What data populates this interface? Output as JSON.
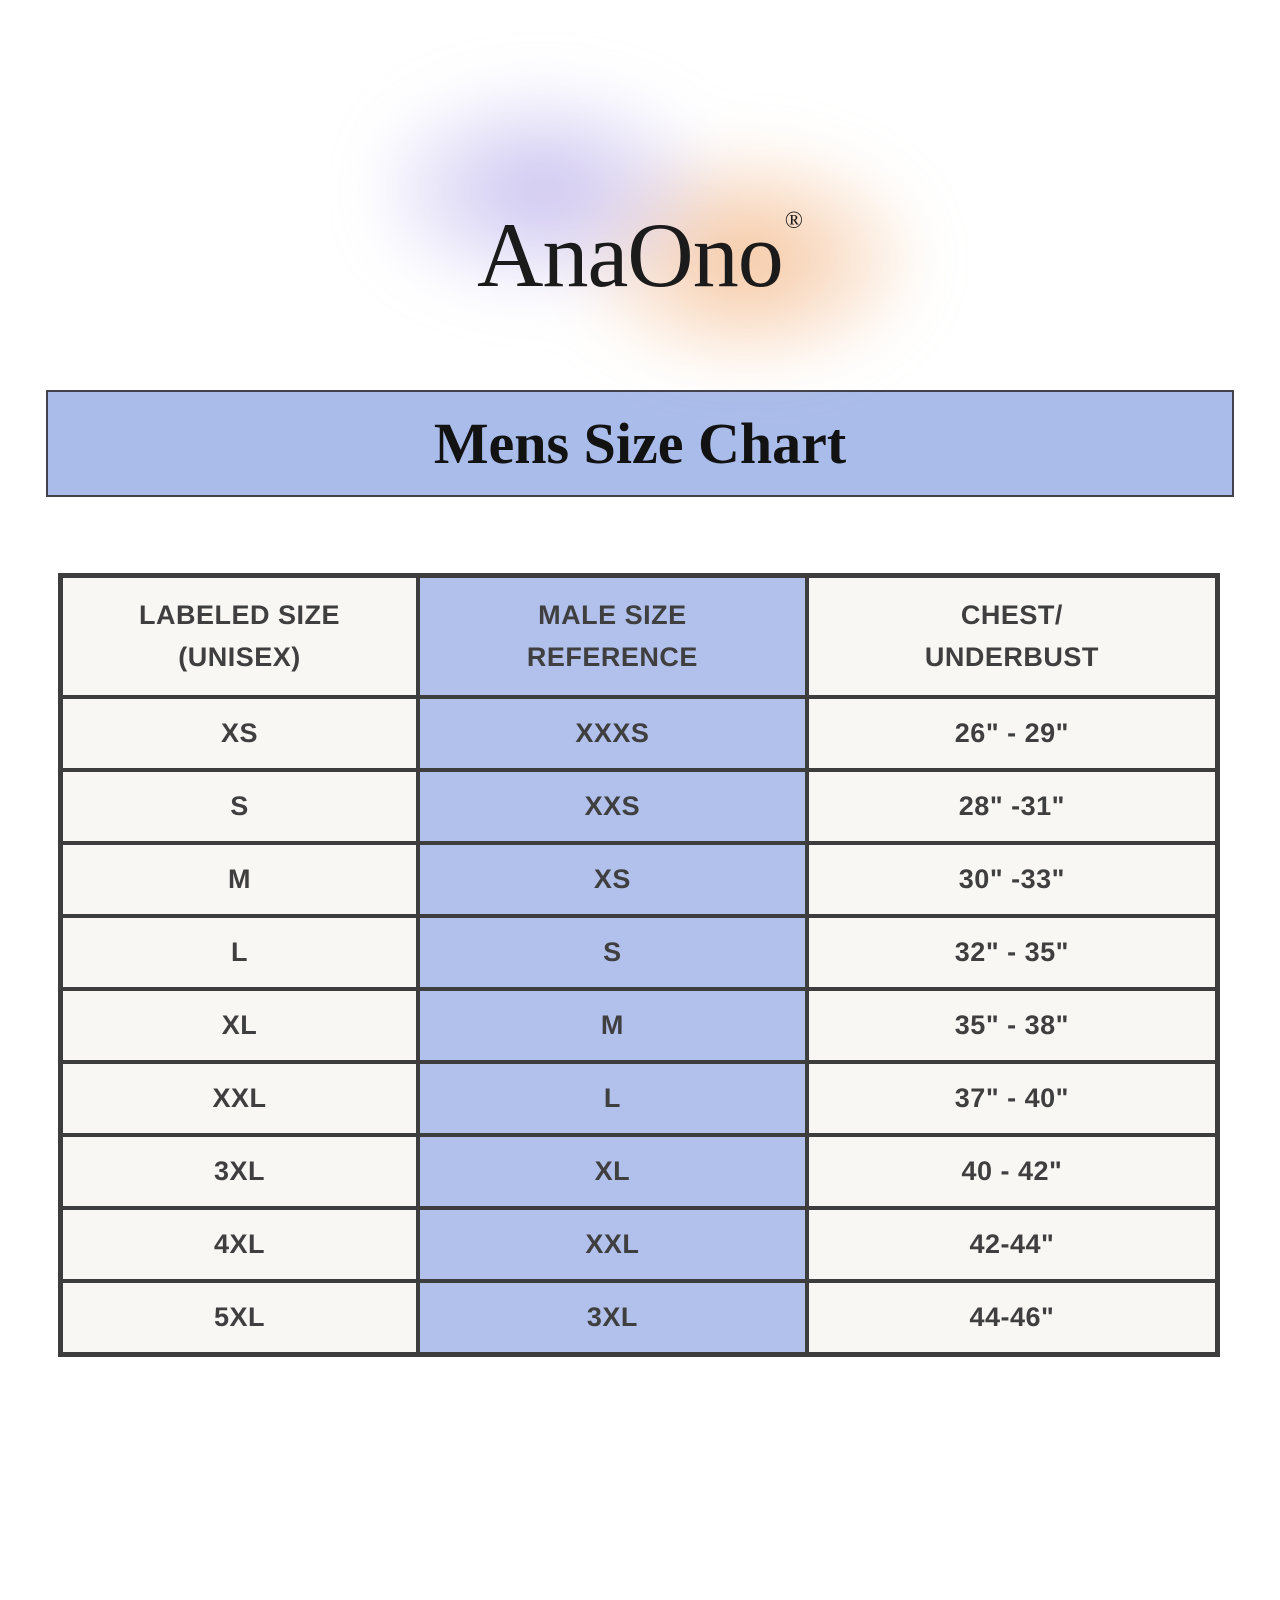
{
  "logo": {
    "text": "AnaOno",
    "registered_mark": "®"
  },
  "banner": {
    "title": "Mens Size Chart",
    "background_color": "#aabcea"
  },
  "colors": {
    "highlight_column": "#b2c0ec",
    "cell_background": "#f8f7f3",
    "table_border": "#3d3d3d",
    "gradient_purple": "#beb3ec",
    "gradient_orange": "#f3ba8c"
  },
  "table": {
    "columns": [
      {
        "line1": "LABELED SIZE",
        "line2": "(UNISEX)"
      },
      {
        "line1": "MALE SIZE",
        "line2": "REFERENCE"
      },
      {
        "line1": "CHEST/",
        "line2": "UNDERBUST"
      }
    ],
    "rows": [
      {
        "labeled_size": "XS",
        "male_size": "XXXS",
        "chest": "26\" - 29\""
      },
      {
        "labeled_size": "S",
        "male_size": "XXS",
        "chest": "28\" -31\""
      },
      {
        "labeled_size": "M",
        "male_size": "XS",
        "chest": "30\" -33\""
      },
      {
        "labeled_size": "L",
        "male_size": "S",
        "chest": "32\" - 35\""
      },
      {
        "labeled_size": "XL",
        "male_size": "M",
        "chest": "35\" - 38\""
      },
      {
        "labeled_size": "XXL",
        "male_size": "L",
        "chest": "37\" - 40\""
      },
      {
        "labeled_size": "3XL",
        "male_size": "XL",
        "chest": "40 - 42\""
      },
      {
        "labeled_size": "4XL",
        "male_size": "XXL",
        "chest": "42-44\""
      },
      {
        "labeled_size": "5XL",
        "male_size": "3XL",
        "chest": "44-46\""
      }
    ]
  }
}
